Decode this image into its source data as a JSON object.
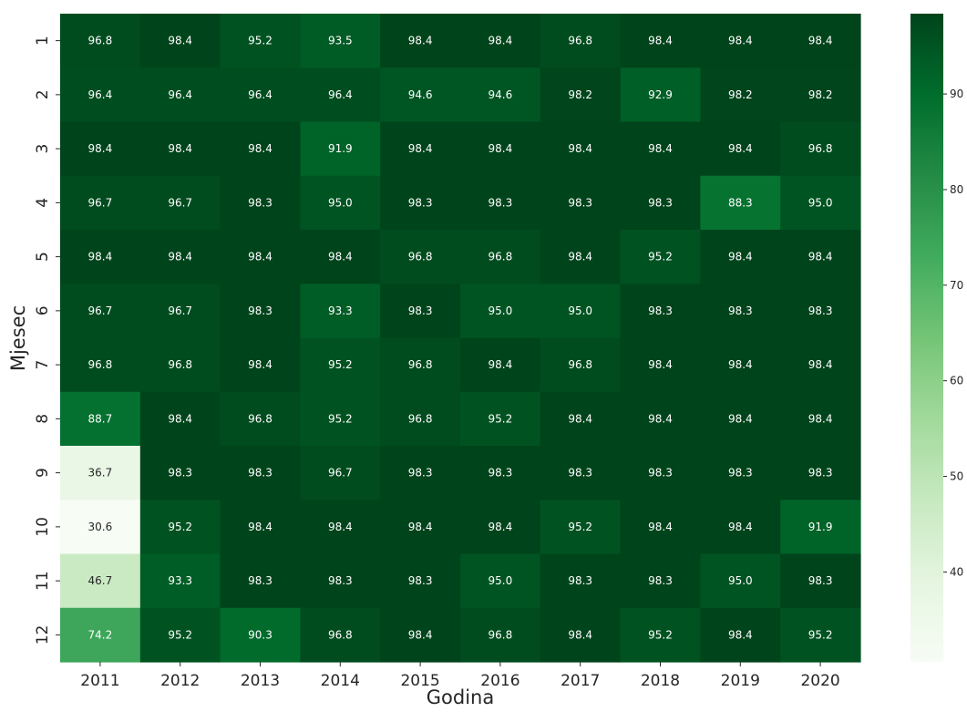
{
  "chart_data": {
    "type": "heatmap",
    "xlabel": "Godina",
    "ylabel": "Mjesec",
    "x_categories": [
      "2011",
      "2012",
      "2013",
      "2014",
      "2015",
      "2016",
      "2017",
      "2018",
      "2019",
      "2020"
    ],
    "y_categories": [
      "1",
      "2",
      "3",
      "4",
      "5",
      "6",
      "7",
      "8",
      "9",
      "10",
      "11",
      "12"
    ],
    "values": [
      [
        96.8,
        98.4,
        95.2,
        93.5,
        98.4,
        98.4,
        96.8,
        98.4,
        98.4,
        98.4
      ],
      [
        96.4,
        96.4,
        96.4,
        96.4,
        94.6,
        94.6,
        98.2,
        92.9,
        98.2,
        98.2
      ],
      [
        98.4,
        98.4,
        98.4,
        91.9,
        98.4,
        98.4,
        98.4,
        98.4,
        98.4,
        96.8
      ],
      [
        96.7,
        96.7,
        98.3,
        95.0,
        98.3,
        98.3,
        98.3,
        98.3,
        88.3,
        95.0
      ],
      [
        98.4,
        98.4,
        98.4,
        98.4,
        96.8,
        96.8,
        98.4,
        95.2,
        98.4,
        98.4
      ],
      [
        96.7,
        96.7,
        98.3,
        93.3,
        98.3,
        95.0,
        95.0,
        98.3,
        98.3,
        98.3
      ],
      [
        96.8,
        96.8,
        98.4,
        95.2,
        96.8,
        98.4,
        96.8,
        98.4,
        98.4,
        98.4
      ],
      [
        88.7,
        98.4,
        96.8,
        95.2,
        96.8,
        95.2,
        98.4,
        98.4,
        98.4,
        98.4
      ],
      [
        36.7,
        98.3,
        98.3,
        96.7,
        98.3,
        98.3,
        98.3,
        98.3,
        98.3,
        98.3
      ],
      [
        30.6,
        95.2,
        98.4,
        98.4,
        98.4,
        98.4,
        95.2,
        98.4,
        98.4,
        91.9
      ],
      [
        46.7,
        93.3,
        98.3,
        98.3,
        98.3,
        95.0,
        98.3,
        98.3,
        95.0,
        98.3
      ],
      [
        74.2,
        95.2,
        90.3,
        96.8,
        98.4,
        96.8,
        98.4,
        95.2,
        98.4,
        95.2
      ]
    ],
    "value_format": "0.0",
    "colormap": "Greens",
    "color_range": [
      30.6,
      98.4
    ],
    "colorbar_ticks": [
      40,
      50,
      60,
      70,
      80,
      90
    ],
    "colors": {
      "low": "#f7fcf5",
      "high": "#00441b",
      "text_dark": "#262626",
      "text_light": "#ffffff"
    },
    "grid": false
  }
}
